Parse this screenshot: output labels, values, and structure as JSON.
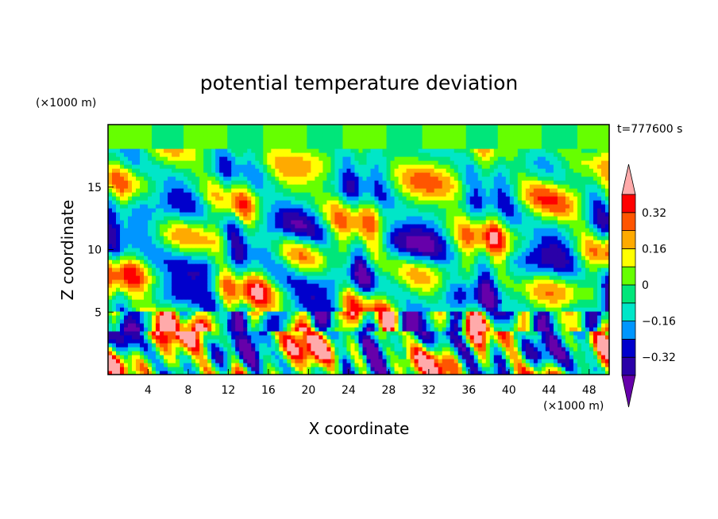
{
  "chart_data": {
    "type": "heatmap",
    "title": "potential temperature deviation",
    "xlabel": "X coordinate",
    "ylabel": "Z coordinate",
    "x_unit": "(×1000 m)",
    "y_unit": "(×1000 m)",
    "time_label": "t=777600 s",
    "xlim": [
      0,
      50
    ],
    "ylim": [
      0,
      20
    ],
    "x_ticks": [
      4,
      8,
      12,
      16,
      20,
      24,
      28,
      32,
      36,
      40,
      44,
      48
    ],
    "y_ticks": [
      5,
      10,
      15
    ],
    "colorbar": {
      "levels": [
        -0.4,
        -0.32,
        -0.24,
        -0.16,
        -0.08,
        0,
        0.08,
        0.16,
        0.24,
        0.32,
        0.4
      ],
      "labels": [
        "0.32",
        "0.16",
        "0",
        "−0.16",
        "−0.32"
      ],
      "label_values": [
        0.32,
        0.16,
        0,
        -0.16,
        -0.32
      ],
      "colors": [
        "#6600aa",
        "#2a00a8",
        "#0000cc",
        "#0096ff",
        "#00e6c8",
        "#00e67a",
        "#66ff00",
        "#ffff00",
        "#ffaa00",
        "#ff5500",
        "#ff0000",
        "#ffaaaa"
      ]
    }
  }
}
